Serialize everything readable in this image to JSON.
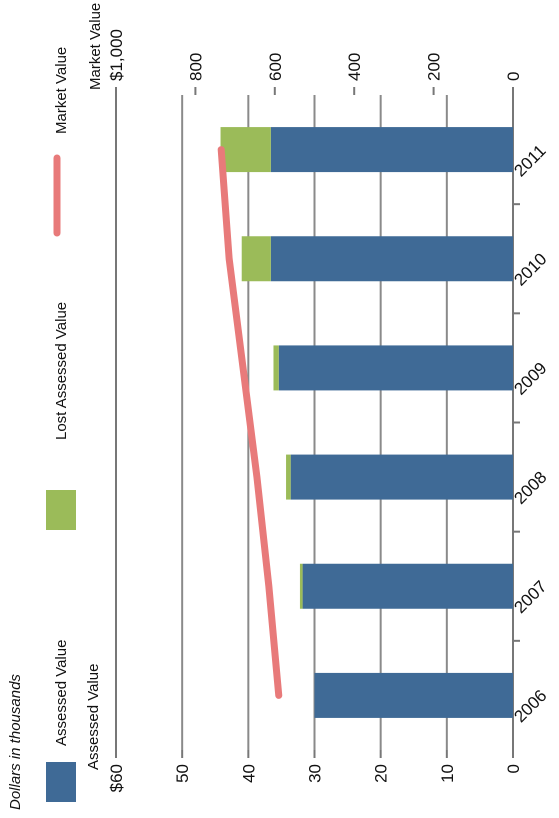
{
  "chart_data": {
    "type": "bar",
    "orientation": "horizontal-stacked-with-line",
    "note": "Dollars in thousands",
    "categories": [
      "2006",
      "2007",
      "2008",
      "2009",
      "2010",
      "2011"
    ],
    "series": [
      {
        "name": "Assessed Value",
        "kind": "bar",
        "axis": "assessed",
        "color": "#3f6a96",
        "values": [
          30.0,
          31.8,
          33.6,
          35.4,
          36.6,
          36.6
        ]
      },
      {
        "name": "Lost Assessed Value",
        "kind": "bar",
        "axis": "assessed",
        "color": "#9bbb59",
        "values": [
          0,
          0.4,
          0.7,
          0.8,
          4.4,
          7.6
        ]
      },
      {
        "name": "Market Value",
        "kind": "line",
        "axis": "market",
        "color": "#e87a7a",
        "values": [
          590,
          615,
          645,
          680,
          715,
          735
        ]
      }
    ],
    "axes": {
      "assessed": {
        "label": "Assessed Value",
        "range": [
          0,
          60
        ],
        "ticks": [
          "0",
          "10",
          "20",
          "30",
          "40",
          "50",
          "$60"
        ]
      },
      "market": {
        "label": "Market Value",
        "range": [
          0,
          1000
        ],
        "ticks": [
          "0",
          "200",
          "400",
          "600",
          "800",
          "$1,000"
        ]
      }
    },
    "legend": [
      "Assessed Value",
      "Lost Assessed Value",
      "Market Value"
    ],
    "grid": true
  }
}
